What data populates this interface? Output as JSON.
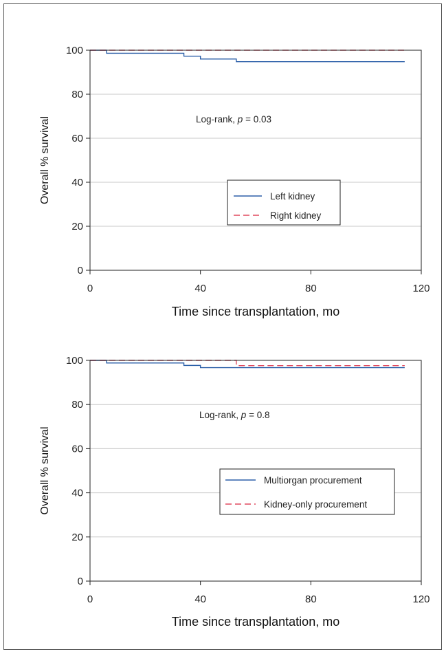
{
  "colors": {
    "left_kidney": "#2b5fa8",
    "right_kidney": "#e0485e",
    "grid": "#c8c8c8",
    "axis": "#222222"
  },
  "chart_data": [
    {
      "type": "line",
      "subtype": "kaplan-meier step",
      "title": "",
      "xlabel": "Time since transplantation, mo",
      "ylabel": "Overall % survival",
      "xlim": [
        0,
        120
      ],
      "ylim": [
        0,
        100
      ],
      "xticks": [
        0,
        40,
        80,
        120
      ],
      "yticks": [
        0,
        20,
        40,
        60,
        80,
        100
      ],
      "grid": "horizontal",
      "annotation": {
        "prefix": "Log-rank, ",
        "p": "p",
        "suffix": " = 0.03"
      },
      "legend_position": "center-right",
      "series": [
        {
          "name": "Left kidney",
          "style": "solid",
          "color": "#2b5fa8",
          "x": [
            0,
            6,
            34,
            40,
            53,
            114
          ],
          "y": [
            100,
            98.6,
            97.3,
            96,
            94.8,
            94.8
          ]
        },
        {
          "name": "Right kidney",
          "style": "dashed",
          "color": "#e0485e",
          "x": [
            0,
            114
          ],
          "y": [
            100,
            100
          ]
        }
      ]
    },
    {
      "type": "line",
      "subtype": "kaplan-meier step",
      "title": "",
      "xlabel": "Time since transplantation, mo",
      "ylabel": "Overall % survival",
      "xlim": [
        0,
        120
      ],
      "ylim": [
        0,
        100
      ],
      "xticks": [
        0,
        40,
        80,
        120
      ],
      "yticks": [
        0,
        20,
        40,
        60,
        80,
        100
      ],
      "grid": "horizontal",
      "annotation": {
        "prefix": "Log-rank, ",
        "p": "p",
        "suffix": " = 0.8"
      },
      "legend_position": "center-right",
      "series": [
        {
          "name": "Multiorgan procurement",
          "style": "solid",
          "color": "#2b5fa8",
          "x": [
            0,
            6,
            34,
            40,
            114
          ],
          "y": [
            100,
            98.8,
            97.7,
            96.7,
            96.7
          ]
        },
        {
          "name": "Kidney-only procurement",
          "style": "dashed",
          "color": "#e0485e",
          "x": [
            0,
            53,
            114
          ],
          "y": [
            100,
            97.6,
            97.6
          ]
        }
      ]
    }
  ]
}
